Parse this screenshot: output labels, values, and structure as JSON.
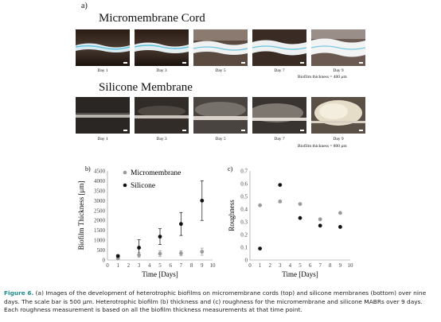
{
  "panel_a": {
    "letter": "a)",
    "top_title": "Micromembrane Cord",
    "bottom_title": "Silicone Membrane",
    "days": [
      "Day 1",
      "Day 3",
      "Day 5",
      "Day 7",
      "Day 9"
    ],
    "top_thickness_note": "Biofilm thickness = 400 μm",
    "bottom_thickness_note": "Biofilm thickness = 800 μm"
  },
  "caption": {
    "label": "Figure 6.",
    "text": " (a) Images of the development of heterotrophic biofilms on micromembrane cords (top) and silicone membranes (bottom) over nine days. The scale bar is 500 μm. Heterotrophic biofilm (b) thickness and (c) roughness for the micromembrane and silicone MABRs over 9 days. Each roughness measurement is based on all the biofilm thickness measurements at that time point."
  },
  "chart_data": [
    {
      "panel": "b)",
      "type": "scatter",
      "xlabel": "Time [Days]",
      "ylabel": "Biofilm Thickness [μm]",
      "xlim": [
        0,
        10
      ],
      "ylim": [
        0,
        4500
      ],
      "xticks": [
        "0",
        "1",
        "2",
        "3",
        "4",
        "5",
        "6",
        "7",
        "8",
        "9",
        "10"
      ],
      "yticks": [
        "0",
        "500",
        "1000",
        "1500",
        "2000",
        "2500",
        "3000",
        "3500",
        "4000",
        "4500"
      ],
      "legend_position": "top-left",
      "series": [
        {
          "name": "Micromembrane",
          "color": "#9a9a9a",
          "x": [
            1,
            3,
            5,
            7,
            9
          ],
          "y": [
            80,
            250,
            320,
            340,
            420
          ],
          "err": [
            40,
            120,
            150,
            130,
            180
          ]
        },
        {
          "name": "Silicone",
          "color": "#111111",
          "x": [
            1,
            3,
            5,
            7,
            9
          ],
          "y": [
            200,
            620,
            1180,
            1820,
            3000
          ],
          "err": [
            60,
            400,
            400,
            580,
            1000
          ]
        }
      ]
    },
    {
      "panel": "c)",
      "type": "scatter",
      "xlabel": "Time [Days]",
      "ylabel": "Roughness",
      "xlim": [
        0,
        10
      ],
      "ylim": [
        0,
        0.7
      ],
      "xticks": [
        "0",
        "1",
        "2",
        "3",
        "4",
        "5",
        "6",
        "7",
        "8",
        "9",
        "10"
      ],
      "yticks": [
        "0",
        "0.1",
        "0.2",
        "0.3",
        "0.4",
        "0.5",
        "0.6",
        "0.7"
      ],
      "series": [
        {
          "color": "#9a9a9a",
          "x": [
            1,
            3,
            5,
            7,
            9
          ],
          "y": [
            0.43,
            0.46,
            0.44,
            0.32,
            0.37
          ]
        },
        {
          "color": "#111111",
          "x": [
            1,
            3,
            5,
            7,
            9
          ],
          "y": [
            0.09,
            0.59,
            0.33,
            0.27,
            0.26
          ]
        }
      ]
    }
  ]
}
